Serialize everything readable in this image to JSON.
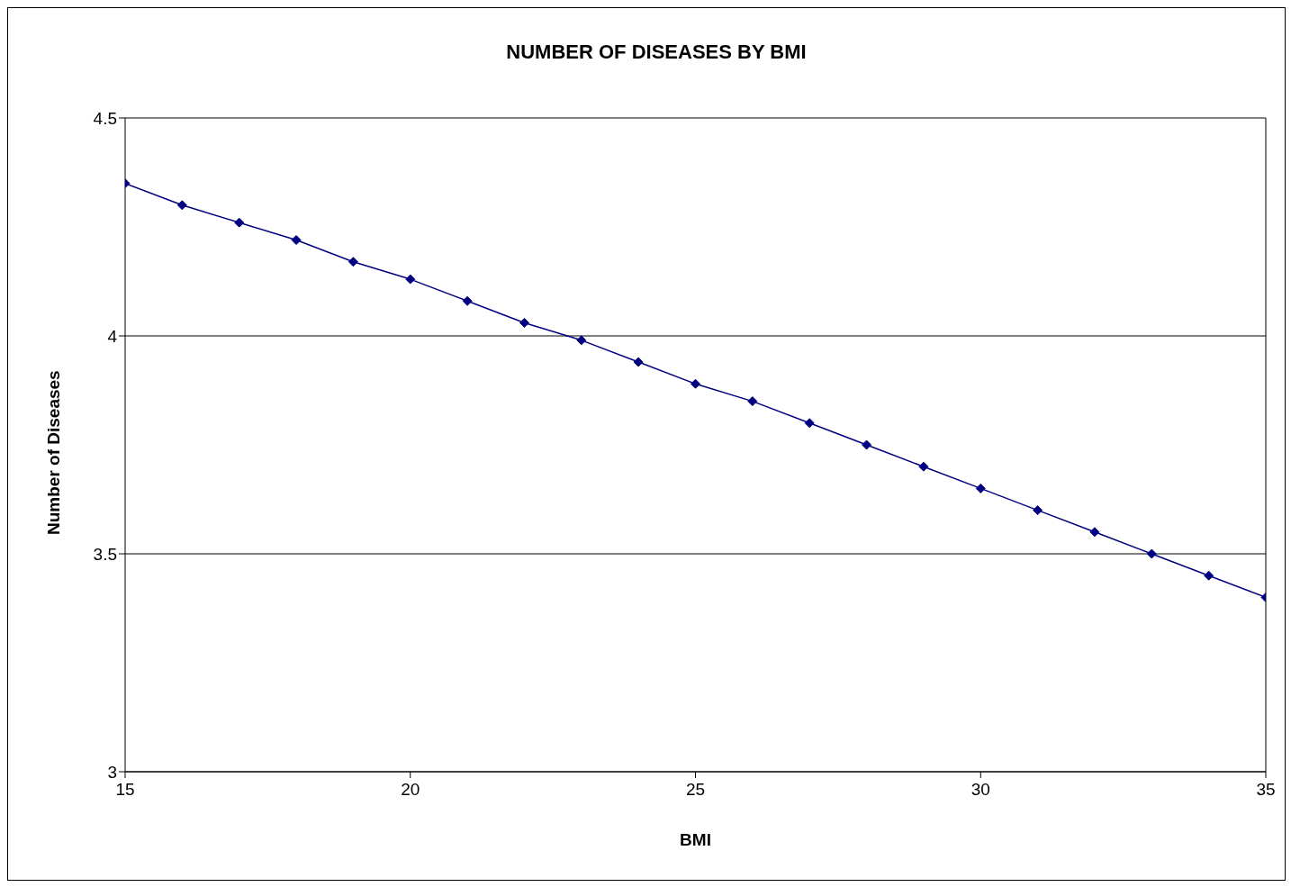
{
  "chart_data": {
    "type": "line",
    "title": "NUMBER OF DISEASES BY BMI",
    "xlabel": "BMI",
    "ylabel": "Number of Diseases",
    "x": [
      15,
      16,
      17,
      18,
      19,
      20,
      21,
      22,
      23,
      24,
      25,
      26,
      27,
      28,
      29,
      30,
      31,
      32,
      33,
      34,
      35
    ],
    "series": [
      {
        "color": "#000080",
        "values": [
          4.35,
          4.3,
          4.26,
          4.22,
          4.17,
          4.13,
          4.08,
          4.03,
          3.99,
          3.94,
          3.89,
          3.85,
          3.8,
          3.75,
          3.7,
          3.65,
          3.6,
          3.55,
          3.5,
          3.45,
          3.4
        ]
      }
    ],
    "xlim": [
      15,
      35
    ],
    "xticks": [
      15,
      20,
      25,
      30,
      35
    ],
    "ylim": [
      3,
      4.5
    ],
    "yticks": [
      3,
      3.5,
      4,
      4.5
    ],
    "grid": "y",
    "marker": "diamond",
    "line_style": "solid"
  }
}
